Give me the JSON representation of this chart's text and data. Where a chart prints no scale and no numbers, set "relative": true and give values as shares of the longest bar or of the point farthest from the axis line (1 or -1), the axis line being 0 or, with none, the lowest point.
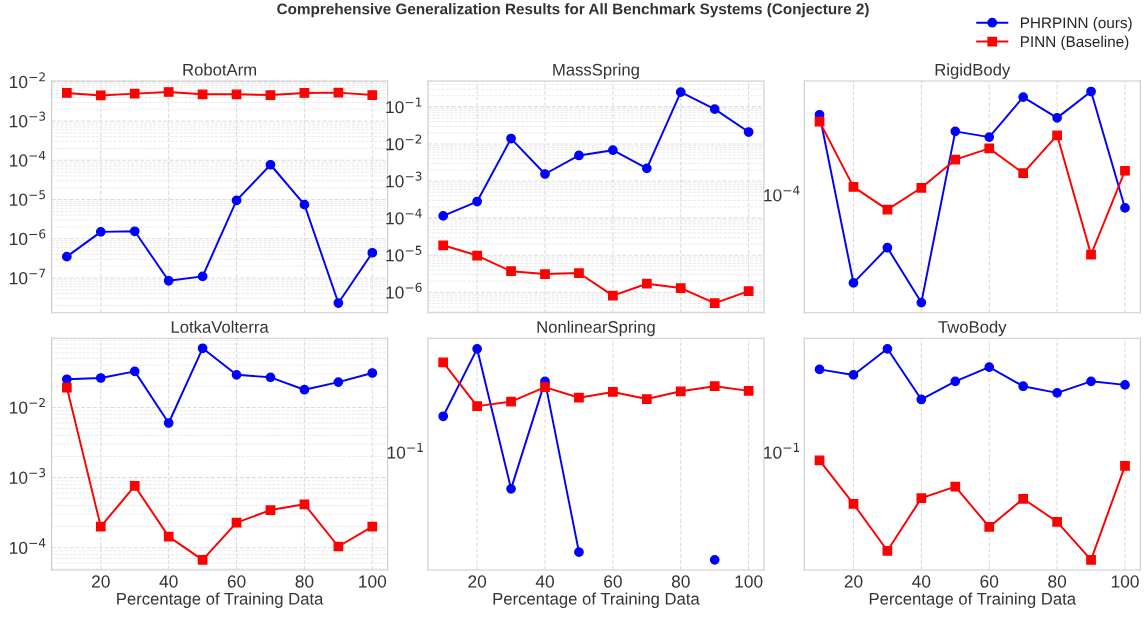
{
  "chart_data": [
    {
      "type": "line",
      "title": "RobotArm",
      "annotations": [
        "Comprehensive Generalization Results for All Benchmark Systems (Conjecture 2)"
      ],
      "legend": "top right",
      "grid": true,
      "log": "y",
      "tick_labels": "y",
      "line_style": "solid",
      "x": [
        10,
        20,
        30,
        40,
        50,
        60,
        70,
        80,
        90,
        100
      ],
      "xlim": [
        5.5,
        104.5
      ],
      "xticks": [
        20,
        40,
        60,
        80,
        100
      ],
      "ylim": [
        1.3e-08,
        0.0105
      ],
      "yticks": [
        {
          "value": 1e-07,
          "label": "10$^{−7}$"
        },
        {
          "value": 1e-06,
          "label": "10$^{−6}$"
        },
        {
          "value": 1e-05,
          "label": "10$^{−5}$"
        },
        {
          "value": 0.0001,
          "label": "10$^{−4}$"
        },
        {
          "value": 0.001,
          "label": "10$^{−3}$"
        },
        {
          "value": 0.01,
          "label": "10$^{−2}$"
        }
      ],
      "series": [
        {
          "name": "PHRPINN (ours)",
          "color": "#0000ff",
          "marker": "circle",
          "values": [
            3.5e-07,
            1.5e-06,
            1.55e-06,
            8.5e-08,
            1.1e-07,
            9.5e-06,
            7.7e-05,
            7.4e-06,
            2.3e-08,
            4.4e-07
          ]
        },
        {
          "name": "PINN (Baseline)",
          "color": "#ff0000",
          "marker": "square",
          "values": [
            0.0052,
            0.0045,
            0.005,
            0.0055,
            0.0048,
            0.0048,
            0.0046,
            0.0052,
            0.0053,
            0.0046
          ]
        }
      ]
    },
    {
      "type": "line",
      "title": "MassSpring",
      "grid": true,
      "log": "y",
      "tick_labels": "y",
      "line_style": "solid",
      "x": [
        10,
        20,
        30,
        40,
        50,
        60,
        70,
        80,
        90,
        100
      ],
      "xlim": [
        5.5,
        104.5
      ],
      "xticks": [
        20,
        40,
        60,
        80,
        100
      ],
      "ylim": [
        2.8e-07,
        0.5
      ],
      "yticks": [
        {
          "value": 1e-06,
          "label": "10$^{−6}$"
        },
        {
          "value": 1e-05,
          "label": "10$^{−5}$"
        },
        {
          "value": 0.0001,
          "label": "10$^{−4}$"
        },
        {
          "value": 0.001,
          "label": "10$^{−3}$"
        },
        {
          "value": 0.01,
          "label": "10$^{−2}$"
        },
        {
          "value": 0.1,
          "label": "10$^{−1}$"
        }
      ],
      "series": [
        {
          "name": "PHRPINN (ours)",
          "color": "#0000ff",
          "marker": "circle",
          "values": [
            0.000115,
            0.00028,
            0.014,
            0.00155,
            0.0049,
            0.0068,
            0.0022,
            0.25,
            0.087,
            0.021
          ]
        },
        {
          "name": "PINN (Baseline)",
          "color": "#ff0000",
          "marker": "square",
          "values": [
            1.85e-05,
            9.8e-06,
            3.7e-06,
            3.1e-06,
            3.3e-06,
            8.1e-07,
            1.7e-06,
            1.3e-06,
            5.1e-07,
            1.07e-06
          ]
        }
      ]
    },
    {
      "type": "line",
      "title": "RigidBody",
      "relative": true,
      "grid": true,
      "tick_labels": false,
      "line_style": "solid",
      "annotations": [
        "10$^{−4}$"
      ],
      "x": [
        10,
        20,
        30,
        40,
        50,
        60,
        70,
        80,
        90,
        100
      ],
      "xlim": [
        5.5,
        104.5
      ],
      "xticks": [
        20,
        40,
        60,
        80,
        100
      ],
      "series": [
        {
          "name": "PHRPINN (ours)",
          "color": "#0000ff",
          "marker": "circle",
          "values": [
            0.895,
            0.135,
            0.294,
            0.046,
            0.82,
            0.794,
            0.975,
            0.881,
            1,
            0.474
          ]
        },
        {
          "name": "PINN (Baseline)",
          "color": "#ff0000",
          "marker": "square",
          "values": [
            0.864,
            0.569,
            0.466,
            0.565,
            0.692,
            0.743,
            0.631,
            0.802,
            0.263,
            0.642
          ]
        }
      ]
    },
    {
      "type": "line",
      "title": "LotkaVolterra",
      "xlabel": "Percentage of Training Data",
      "grid": true,
      "log": "y",
      "line_style": "solid",
      "x": [
        10,
        20,
        30,
        40,
        50,
        60,
        70,
        80,
        90,
        100
      ],
      "xlim": [
        5.5,
        104.5
      ],
      "xticks": [
        20,
        40,
        60,
        80,
        100
      ],
      "ylim": [
        4.8e-05,
        0.097
      ],
      "yticks": [
        {
          "value": 0.0001,
          "label": "10$^{−4}$"
        },
        {
          "value": 0.001,
          "label": "10$^{−3}$"
        },
        {
          "value": 0.01,
          "label": "10$^{−2}$"
        }
      ],
      "series": [
        {
          "name": "PHRPINN (ours)",
          "color": "#0000ff",
          "marker": "circle",
          "values": [
            0.0252,
            0.0263,
            0.0327,
            0.006,
            0.0698,
            0.0292,
            0.0269,
            0.0179,
            0.023,
            0.031
          ]
        },
        {
          "name": "PINN (Baseline)",
          "color": "#ff0000",
          "marker": "square",
          "values": [
            0.0192,
            0.0002,
            0.00076,
            0.000144,
            6.7e-05,
            0.000228,
            0.000344,
            0.000416,
            0.000104,
            0.0002
          ]
        }
      ]
    },
    {
      "type": "line",
      "title": "NonlinearSpring",
      "relative": true,
      "xlabel": "Percentage of Training Data",
      "grid": true,
      "tick_labels": "x",
      "line_style": "solid",
      "annotations": [
        "10$^{−1}$"
      ],
      "x": [
        10,
        20,
        30,
        40,
        50,
        60,
        70,
        80,
        90,
        100
      ],
      "xlim": [
        5.5,
        104.5
      ],
      "xticks": [
        20,
        40,
        60,
        80,
        100
      ],
      "series": [
        {
          "name": "PHRPINN (ours)",
          "color": "#0000ff",
          "marker": "circle",
          "values": [
            0.695,
            1,
            0.367,
            0.853,
            0.081,
            null,
            null,
            null,
            0.046,
            null
          ]
        },
        {
          "name": "PINN (Baseline)",
          "color": "#ff0000",
          "marker": "square",
          "values": [
            0.939,
            0.741,
            0.761,
            0.827,
            0.779,
            0.805,
            0.773,
            0.808,
            0.831,
            0.81
          ]
        }
      ]
    },
    {
      "type": "line",
      "title": "TwoBody",
      "relative": true,
      "xlabel": "Percentage of Training Data",
      "grid": true,
      "tick_labels": "x",
      "line_style": "solid",
      "annotations": [
        "10$^{−1}$"
      ],
      "x": [
        10,
        20,
        30,
        40,
        50,
        60,
        70,
        80,
        90,
        100
      ],
      "xlim": [
        5.5,
        104.5
      ],
      "xticks": [
        20,
        40,
        60,
        80,
        100
      ],
      "series": [
        {
          "name": "PHRPINN (ours)",
          "color": "#0000ff",
          "marker": "circle",
          "values": [
            0.907,
            0.882,
            1,
            0.771,
            0.853,
            0.917,
            0.831,
            0.801,
            0.853,
            0.837
          ]
        },
        {
          "name": "PINN (Baseline)",
          "color": "#ff0000",
          "marker": "square",
          "values": [
            0.496,
            0.299,
            0.087,
            0.325,
            0.377,
            0.195,
            0.322,
            0.218,
            0.046,
            0.471
          ]
        }
      ]
    }
  ]
}
